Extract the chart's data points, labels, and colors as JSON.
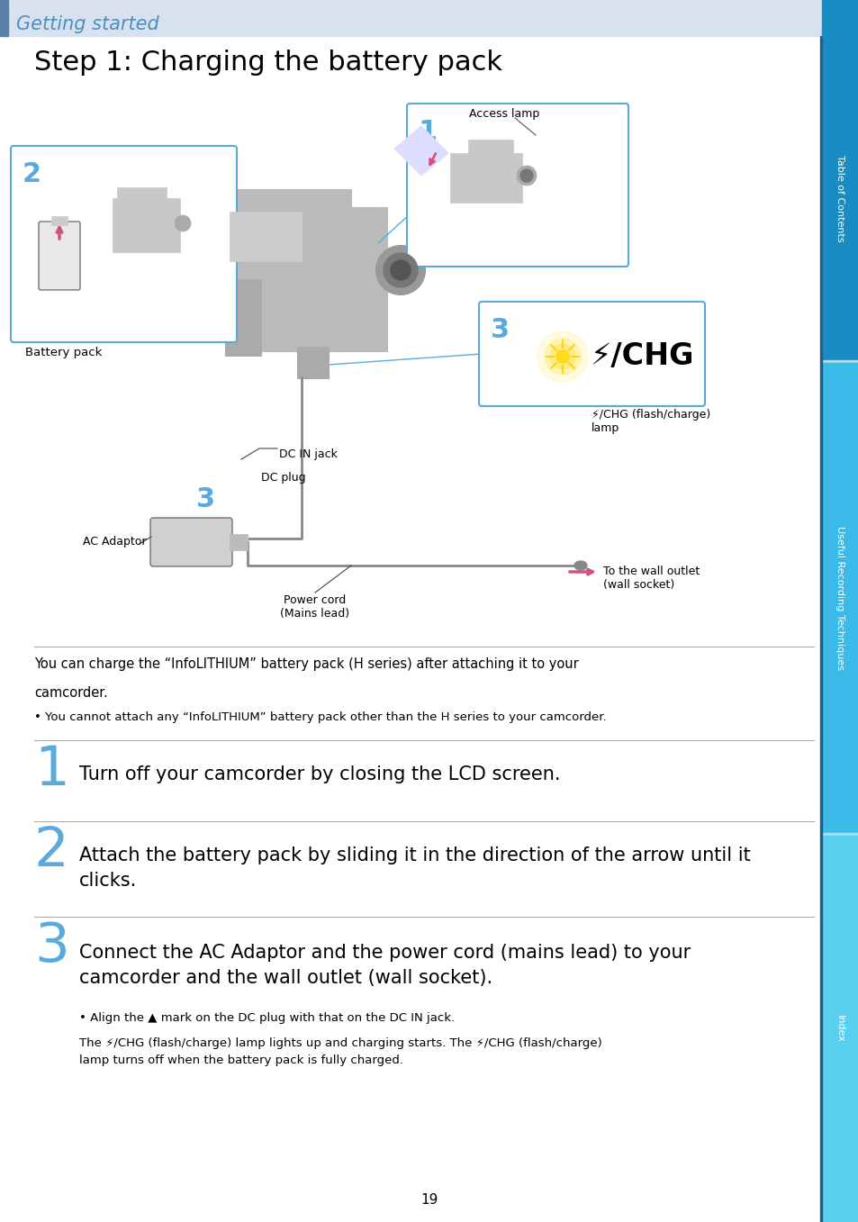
{
  "title_section": "Getting started",
  "title_main": "Step 1: Charging the battery pack",
  "title_color": "#4a90c4",
  "header_bg_color": "#d8e2ee",
  "header_bar_color": "#5a7fa8",
  "sidebar_top_color": "#1a8cc4",
  "sidebar_mid_color": "#3bbce8",
  "sidebar_bot_color": "#5ad0f0",
  "sidebar_labels": [
    "Table of Contents",
    "Useful Recording Techniques",
    "Index"
  ],
  "page_number": "19",
  "body_text_1a": "You can charge the “InfoLITHIUM” battery pack (H series) after attaching it to your",
  "body_text_1b": "camcorder.",
  "body_bullet": "• You cannot attach any “InfoLITHIUM” battery pack other than the H series to your camcorder.",
  "step1_text": "Turn off your camcorder by closing the LCD screen.",
  "step2_text": "Attach the battery pack by sliding it in the direction of the arrow until it\nclicks.",
  "step3_heading": "Connect the AC Adaptor and the power cord (mains lead) to your\ncamcorder and the wall outlet (wall socket).",
  "step3_bullet": "• Align the ▲ mark on the DC plug with that on the DC IN jack.",
  "step3_body": "The ⚡/CHG (flash/charge) lamp lights up and charging starts. The ⚡/CHG (flash/charge)\nlamp turns off when the battery pack is fully charged.",
  "label_battery": "Battery pack",
  "label_dc_in": "DC IN jack",
  "label_dc_plug": "DC plug",
  "label_ac": "AC Adaptor",
  "label_power_cord": "Power cord\n(Mains lead)",
  "label_wall": "To the wall outlet\n(wall socket)",
  "label_access_lamp": "Access lamp",
  "label_chg_lamp": "⚡/CHG (flash/charge)\nlamp",
  "bg_color": "#ffffff",
  "text_color": "#000000",
  "step_color": "#5aabdc",
  "border_color": "#5aabdc",
  "line_color": "#aaaaaa",
  "arrow_pink": "#d45080",
  "cam_body_color": "#c8c8c8",
  "cam_dark_color": "#888888"
}
